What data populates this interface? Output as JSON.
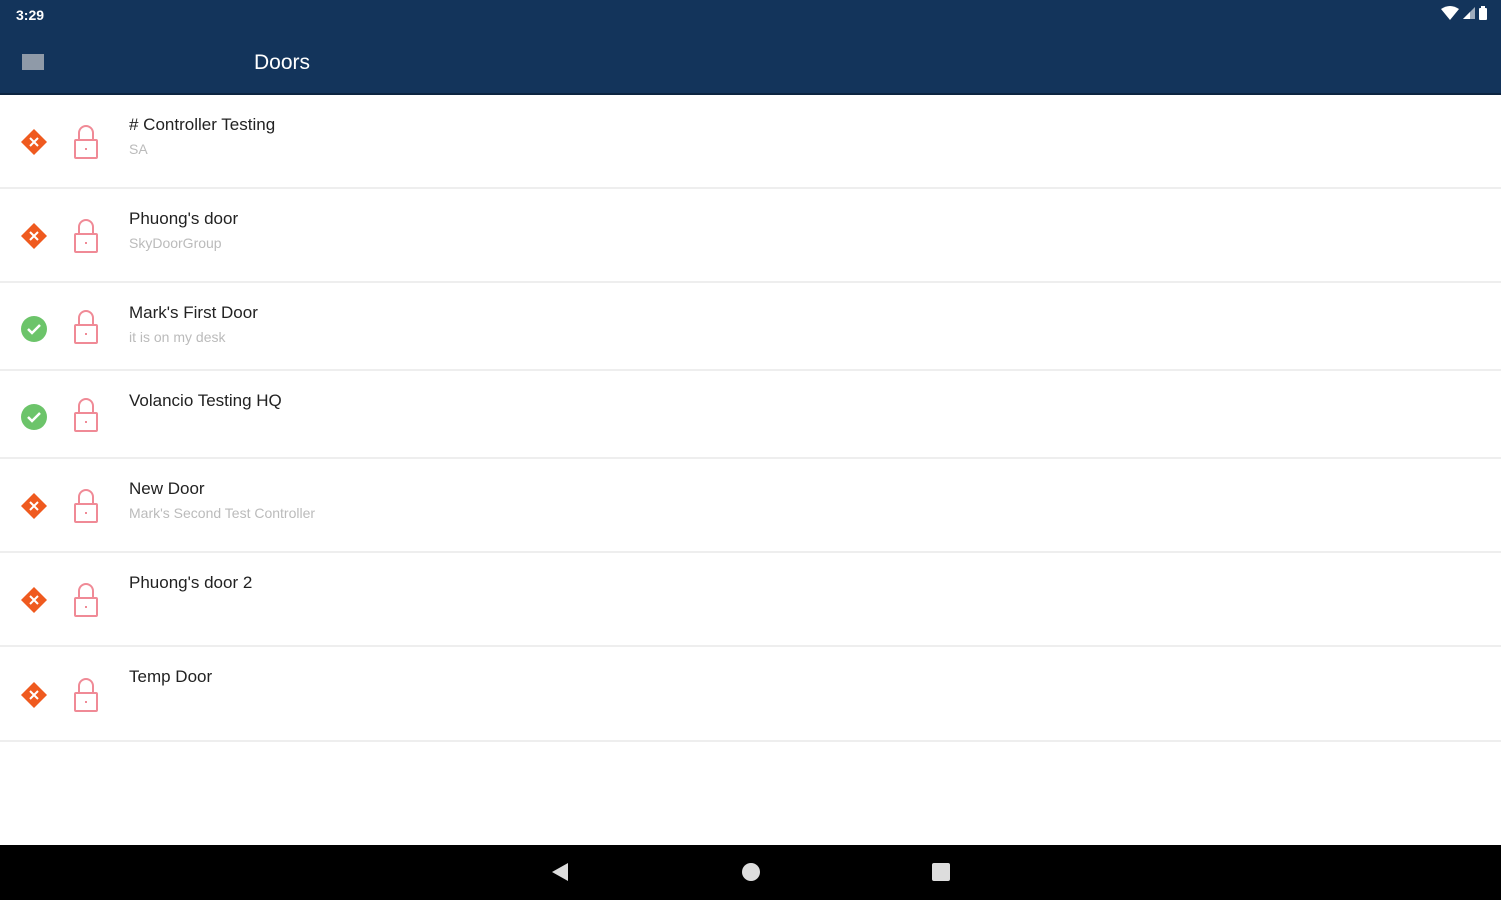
{
  "status_bar": {
    "time": "3:29",
    "icons": [
      "wifi-icon",
      "signal-icon",
      "battery-icon"
    ]
  },
  "app_bar": {
    "title": "Doors",
    "menu_icon": "hamburger-menu-icon"
  },
  "colors": {
    "app_bar": "#13345b",
    "offline": "#ef5a1f",
    "online": "#6cc46a",
    "lock": "#f08a96"
  },
  "doors": [
    {
      "name": "# Controller Testing",
      "subtitle": "SA",
      "status": "offline"
    },
    {
      "name": "Phuong's door",
      "subtitle": "SkyDoorGroup",
      "status": "offline"
    },
    {
      "name": "Mark's First Door",
      "subtitle": "it is on my desk",
      "status": "online"
    },
    {
      "name": "Volancio Testing HQ",
      "subtitle": "",
      "status": "online"
    },
    {
      "name": "New Door",
      "subtitle": "Mark's Second Test Controller",
      "status": "offline"
    },
    {
      "name": "Phuong's door 2",
      "subtitle": "",
      "status": "offline"
    },
    {
      "name": "Temp Door",
      "subtitle": "",
      "status": "offline"
    }
  ],
  "nav_bar": {
    "back": "back-icon",
    "home": "home-icon",
    "recents": "recents-icon"
  }
}
